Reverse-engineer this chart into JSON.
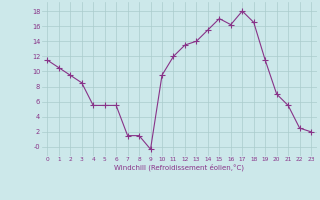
{
  "x": [
    0,
    1,
    2,
    3,
    4,
    5,
    6,
    7,
    8,
    9,
    10,
    11,
    12,
    13,
    14,
    15,
    16,
    17,
    18,
    19,
    20,
    21,
    22,
    23
  ],
  "y": [
    11.5,
    10.5,
    9.5,
    8.5,
    5.5,
    5.5,
    5.5,
    1.5,
    1.5,
    -0.3,
    9.5,
    12.0,
    13.5,
    14.0,
    15.5,
    17.0,
    16.2,
    18.0,
    16.5,
    11.5,
    7.0,
    5.5,
    2.5,
    2.0
  ],
  "line_color": "#883388",
  "marker": "+",
  "marker_size": 4,
  "marker_linewidth": 0.8,
  "bg_color": "#cce8ea",
  "grid_color": "#aacccc",
  "xlabel": "Windchill (Refroidissement éolien,°C)",
  "xlabel_color": "#883388",
  "tick_color": "#883388",
  "ytick_vals": [
    0,
    2,
    4,
    6,
    8,
    10,
    12,
    14,
    16,
    18
  ],
  "ytick_labels": [
    "-0",
    "2",
    "4",
    "6",
    "8",
    "10",
    "12",
    "14",
    "16",
    "18"
  ],
  "xtick_vals": [
    0,
    1,
    2,
    3,
    4,
    5,
    6,
    7,
    8,
    9,
    10,
    11,
    12,
    13,
    14,
    15,
    16,
    17,
    18,
    19,
    20,
    21,
    22,
    23
  ],
  "xtick_labels": [
    "0",
    "1",
    "2",
    "3",
    "4",
    "5",
    "6",
    "7",
    "8",
    "9",
    "10",
    "11",
    "12",
    "13",
    "14",
    "15",
    "16",
    "17",
    "18",
    "19",
    "20",
    "21",
    "22",
    "23"
  ],
  "ylim": [
    -1.2,
    19.2
  ],
  "xlim": [
    -0.5,
    23.5
  ],
  "linewidth": 0.8
}
